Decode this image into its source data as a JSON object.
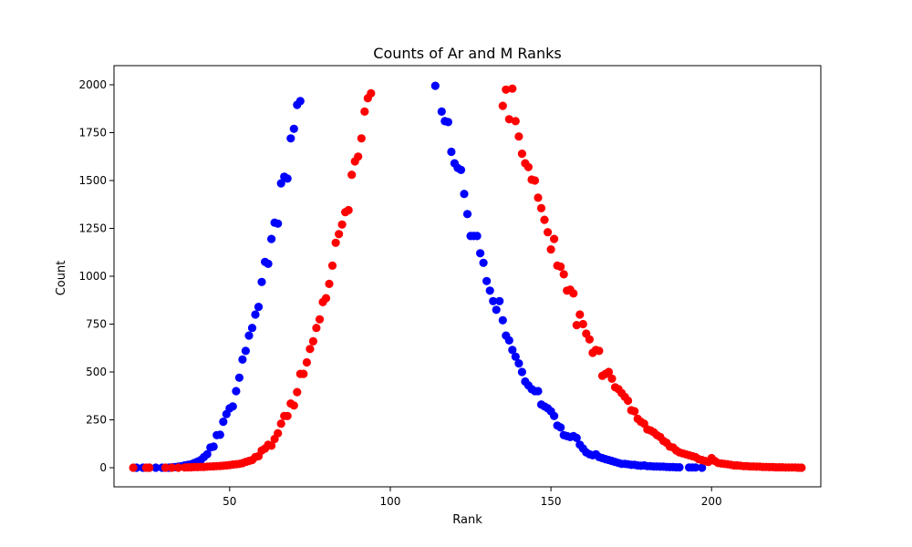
{
  "chart_data": {
    "type": "scatter",
    "title": "Counts of Ar and M Ranks",
    "xlabel": "Rank",
    "ylabel": "Count",
    "xlim": [
      14,
      234
    ],
    "ylim": [
      -100,
      2100
    ],
    "xticks": [
      50,
      100,
      150,
      200
    ],
    "yticks": [
      0,
      250,
      500,
      750,
      1000,
      1250,
      1500,
      1750,
      2000
    ],
    "grid": false,
    "series": [
      {
        "color": "#0000ff",
        "points": [
          [
            21,
            0
          ],
          [
            23,
            0
          ],
          [
            25,
            0
          ],
          [
            27,
            0
          ],
          [
            29,
            0
          ],
          [
            31,
            0
          ],
          [
            32,
            2
          ],
          [
            33,
            3
          ],
          [
            34,
            5
          ],
          [
            35,
            8
          ],
          [
            36,
            12
          ],
          [
            37,
            15
          ],
          [
            38,
            18
          ],
          [
            39,
            25
          ],
          [
            40,
            32
          ],
          [
            41,
            40
          ],
          [
            42,
            55
          ],
          [
            43,
            70
          ],
          [
            44,
            105
          ],
          [
            45,
            110
          ],
          [
            46,
            170
          ],
          [
            47,
            172
          ],
          [
            48,
            240
          ],
          [
            49,
            280
          ],
          [
            50,
            310
          ],
          [
            51,
            320
          ],
          [
            52,
            400
          ],
          [
            53,
            470
          ],
          [
            54,
            565
          ],
          [
            55,
            610
          ],
          [
            56,
            690
          ],
          [
            57,
            730
          ],
          [
            58,
            800
          ],
          [
            59,
            840
          ],
          [
            60,
            970
          ],
          [
            61,
            1075
          ],
          [
            62,
            1065
          ],
          [
            63,
            1195
          ],
          [
            64,
            1280
          ],
          [
            65,
            1275
          ],
          [
            66,
            1485
          ],
          [
            67,
            1520
          ],
          [
            68,
            1510
          ],
          [
            69,
            1720
          ],
          [
            70,
            1770
          ],
          [
            71,
            1895
          ],
          [
            72,
            1915
          ],
          [
            114,
            1995
          ],
          [
            116,
            1860
          ],
          [
            117,
            1810
          ],
          [
            118,
            1805
          ],
          [
            119,
            1650
          ],
          [
            120,
            1590
          ],
          [
            121,
            1565
          ],
          [
            122,
            1555
          ],
          [
            123,
            1430
          ],
          [
            124,
            1325
          ],
          [
            125,
            1210
          ],
          [
            126,
            1210
          ],
          [
            127,
            1210
          ],
          [
            128,
            1120
          ],
          [
            129,
            1070
          ],
          [
            130,
            975
          ],
          [
            131,
            925
          ],
          [
            132,
            870
          ],
          [
            133,
            825
          ],
          [
            134,
            870
          ],
          [
            135,
            770
          ],
          [
            136,
            690
          ],
          [
            137,
            665
          ],
          [
            138,
            615
          ],
          [
            139,
            580
          ],
          [
            140,
            545
          ],
          [
            141,
            500
          ],
          [
            142,
            450
          ],
          [
            143,
            430
          ],
          [
            144,
            410
          ],
          [
            145,
            400
          ],
          [
            146,
            400
          ],
          [
            147,
            330
          ],
          [
            148,
            320
          ],
          [
            149,
            310
          ],
          [
            150,
            295
          ],
          [
            151,
            270
          ],
          [
            152,
            220
          ],
          [
            153,
            210
          ],
          [
            154,
            170
          ],
          [
            155,
            165
          ],
          [
            156,
            160
          ],
          [
            157,
            165
          ],
          [
            158,
            155
          ],
          [
            159,
            120
          ],
          [
            160,
            100
          ],
          [
            161,
            80
          ],
          [
            162,
            70
          ],
          [
            163,
            65
          ],
          [
            164,
            70
          ],
          [
            165,
            55
          ],
          [
            166,
            50
          ],
          [
            167,
            45
          ],
          [
            168,
            40
          ],
          [
            169,
            35
          ],
          [
            170,
            30
          ],
          [
            171,
            25
          ],
          [
            172,
            20
          ],
          [
            173,
            20
          ],
          [
            174,
            18
          ],
          [
            175,
            15
          ],
          [
            176,
            15
          ],
          [
            177,
            12
          ],
          [
            178,
            10
          ],
          [
            179,
            12
          ],
          [
            180,
            8
          ],
          [
            181,
            8
          ],
          [
            182,
            6
          ],
          [
            183,
            6
          ],
          [
            184,
            5
          ],
          [
            185,
            5
          ],
          [
            186,
            4
          ],
          [
            187,
            3
          ],
          [
            188,
            3
          ],
          [
            189,
            2
          ],
          [
            190,
            2
          ],
          [
            193,
            1
          ],
          [
            194,
            1
          ],
          [
            195,
            1
          ],
          [
            197,
            0
          ]
        ]
      },
      {
        "color": "#ff0000",
        "points": [
          [
            20,
            0
          ],
          [
            24,
            0
          ],
          [
            25,
            0
          ],
          [
            30,
            0
          ],
          [
            32,
            0
          ],
          [
            34,
            0
          ],
          [
            36,
            1
          ],
          [
            37,
            2
          ],
          [
            38,
            2
          ],
          [
            39,
            3
          ],
          [
            40,
            3
          ],
          [
            41,
            4
          ],
          [
            42,
            4
          ],
          [
            43,
            5
          ],
          [
            44,
            6
          ],
          [
            45,
            7
          ],
          [
            46,
            8
          ],
          [
            47,
            9
          ],
          [
            48,
            10
          ],
          [
            49,
            12
          ],
          [
            50,
            14
          ],
          [
            51,
            16
          ],
          [
            52,
            18
          ],
          [
            53,
            20
          ],
          [
            54,
            24
          ],
          [
            55,
            30
          ],
          [
            56,
            35
          ],
          [
            57,
            40
          ],
          [
            58,
            55
          ],
          [
            59,
            60
          ],
          [
            60,
            90
          ],
          [
            61,
            100
          ],
          [
            62,
            120
          ],
          [
            63,
            115
          ],
          [
            64,
            150
          ],
          [
            65,
            180
          ],
          [
            66,
            230
          ],
          [
            67,
            270
          ],
          [
            68,
            270
          ],
          [
            69,
            335
          ],
          [
            70,
            325
          ],
          [
            71,
            395
          ],
          [
            72,
            490
          ],
          [
            73,
            490
          ],
          [
            74,
            550
          ],
          [
            75,
            620
          ],
          [
            76,
            660
          ],
          [
            77,
            730
          ],
          [
            78,
            775
          ],
          [
            79,
            865
          ],
          [
            80,
            885
          ],
          [
            81,
            960
          ],
          [
            82,
            1055
          ],
          [
            83,
            1175
          ],
          [
            84,
            1220
          ],
          [
            85,
            1270
          ],
          [
            86,
            1335
          ],
          [
            87,
            1345
          ],
          [
            88,
            1530
          ],
          [
            89,
            1600
          ],
          [
            90,
            1625
          ],
          [
            91,
            1720
          ],
          [
            92,
            1860
          ],
          [
            93,
            1930
          ],
          [
            94,
            1955
          ],
          [
            135,
            1890
          ],
          [
            136,
            1975
          ],
          [
            137,
            1820
          ],
          [
            138,
            1980
          ],
          [
            139,
            1810
          ],
          [
            140,
            1730
          ],
          [
            141,
            1640
          ],
          [
            142,
            1590
          ],
          [
            143,
            1570
          ],
          [
            144,
            1505
          ],
          [
            145,
            1500
          ],
          [
            146,
            1410
          ],
          [
            147,
            1355
          ],
          [
            148,
            1295
          ],
          [
            149,
            1230
          ],
          [
            150,
            1140
          ],
          [
            151,
            1195
          ],
          [
            152,
            1055
          ],
          [
            153,
            1050
          ],
          [
            154,
            1010
          ],
          [
            155,
            925
          ],
          [
            156,
            930
          ],
          [
            157,
            910
          ],
          [
            158,
            745
          ],
          [
            159,
            800
          ],
          [
            160,
            750
          ],
          [
            161,
            700
          ],
          [
            162,
            670
          ],
          [
            163,
            600
          ],
          [
            164,
            615
          ],
          [
            165,
            610
          ],
          [
            166,
            480
          ],
          [
            167,
            490
          ],
          [
            168,
            500
          ],
          [
            169,
            465
          ],
          [
            170,
            420
          ],
          [
            171,
            410
          ],
          [
            172,
            390
          ],
          [
            173,
            370
          ],
          [
            174,
            350
          ],
          [
            175,
            300
          ],
          [
            176,
            295
          ],
          [
            177,
            255
          ],
          [
            178,
            240
          ],
          [
            179,
            230
          ],
          [
            180,
            200
          ],
          [
            181,
            195
          ],
          [
            182,
            185
          ],
          [
            183,
            170
          ],
          [
            184,
            160
          ],
          [
            185,
            140
          ],
          [
            186,
            130
          ],
          [
            187,
            110
          ],
          [
            188,
            105
          ],
          [
            189,
            90
          ],
          [
            190,
            80
          ],
          [
            191,
            75
          ],
          [
            192,
            70
          ],
          [
            193,
            65
          ],
          [
            194,
            60
          ],
          [
            195,
            55
          ],
          [
            196,
            45
          ],
          [
            197,
            40
          ],
          [
            198,
            35
          ],
          [
            199,
            30
          ],
          [
            200,
            50
          ],
          [
            201,
            35
          ],
          [
            202,
            25
          ],
          [
            203,
            22
          ],
          [
            204,
            20
          ],
          [
            205,
            18
          ],
          [
            206,
            15
          ],
          [
            207,
            12
          ],
          [
            208,
            12
          ],
          [
            209,
            10
          ],
          [
            210,
            8
          ],
          [
            211,
            8
          ],
          [
            212,
            6
          ],
          [
            213,
            6
          ],
          [
            214,
            5
          ],
          [
            215,
            5
          ],
          [
            216,
            4
          ],
          [
            217,
            4
          ],
          [
            218,
            3
          ],
          [
            219,
            3
          ],
          [
            220,
            2
          ],
          [
            221,
            2
          ],
          [
            222,
            2
          ],
          [
            223,
            1
          ],
          [
            224,
            1
          ],
          [
            225,
            1
          ],
          [
            226,
            1
          ],
          [
            227,
            0
          ],
          [
            228,
            0
          ]
        ]
      }
    ]
  }
}
